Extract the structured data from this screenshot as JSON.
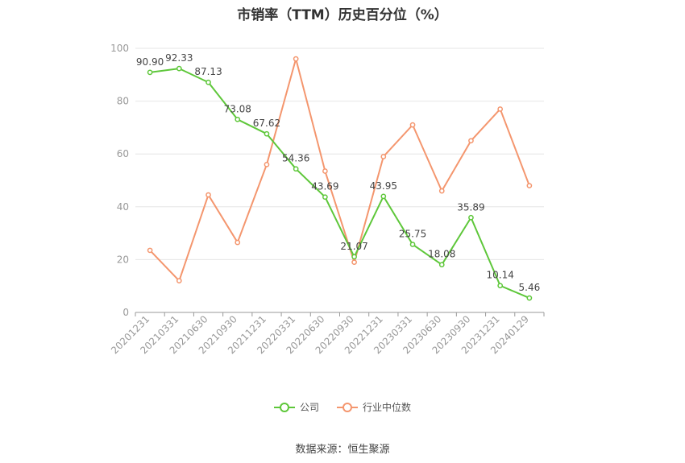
{
  "chart_data": {
    "type": "line",
    "title": "市销率（TTM）历史百分位（%）",
    "xlabel": "",
    "ylabel": "",
    "categories": [
      "20201231",
      "20210331",
      "20210630",
      "20210930",
      "20211231",
      "20220331",
      "20220630",
      "20220930",
      "20221231",
      "20230331",
      "20230630",
      "20230930",
      "20231231",
      "20240129"
    ],
    "ylim": [
      0,
      100
    ],
    "yticks": [
      0,
      20,
      40,
      60,
      80,
      100
    ],
    "grid": true,
    "legend_position": "bottom",
    "series": [
      {
        "name": "公司",
        "color": "#5ec73a",
        "show_labels": true,
        "values": [
          90.9,
          92.33,
          87.13,
          73.08,
          67.62,
          54.36,
          43.69,
          21.07,
          43.95,
          25.75,
          18.08,
          35.89,
          10.14,
          5.46
        ]
      },
      {
        "name": "行业中位数",
        "color": "#f4966e",
        "show_labels": false,
        "values": [
          23.5,
          12.0,
          44.5,
          26.5,
          56.0,
          96.0,
          53.5,
          19.0,
          59.0,
          71.0,
          46.0,
          65.0,
          77.0,
          48.0
        ]
      }
    ]
  },
  "source": "数据来源：恒生聚源"
}
